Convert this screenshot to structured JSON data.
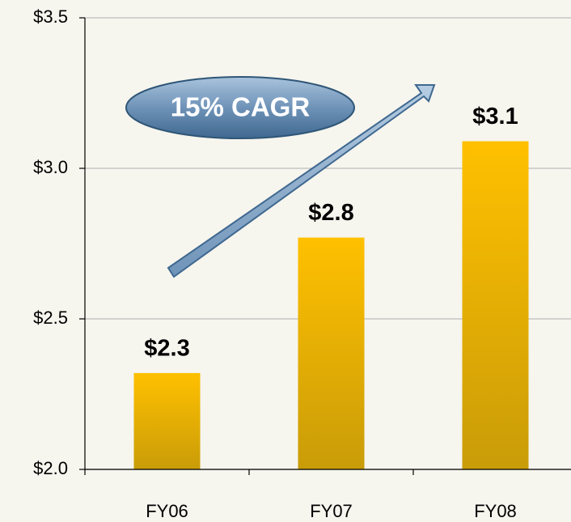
{
  "chart_data": {
    "type": "bar",
    "categories": [
      "FY06",
      "FY07",
      "FY08"
    ],
    "values": [
      2.32,
      2.77,
      3.09
    ],
    "value_labels": [
      "$2.3",
      "$2.8",
      "$3.1"
    ],
    "color": "#ffc000",
    "ylim": [
      2.0,
      3.5
    ],
    "yticks": [
      {
        "value": 2.0,
        "label": "$2.0"
      },
      {
        "value": 2.5,
        "label": "$2.5"
      },
      {
        "value": 3.0,
        "label": "$3.0"
      },
      {
        "value": 3.5,
        "label": "$3.5"
      }
    ],
    "grid": true,
    "annotation": "15% CAGR"
  }
}
